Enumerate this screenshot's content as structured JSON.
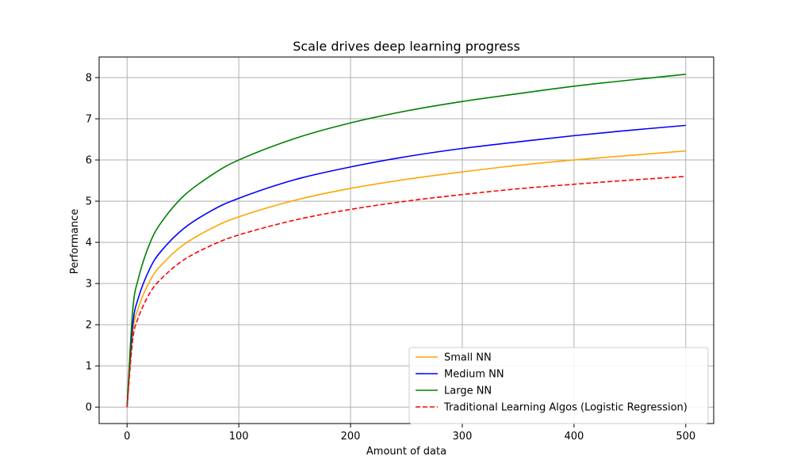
{
  "chart_data": {
    "type": "line",
    "title": "Scale drives deep learning progress",
    "xlabel": "Amount of data",
    "ylabel": "Performance",
    "xlim": [
      -25,
      525
    ],
    "ylim": [
      -0.4,
      8.5
    ],
    "xticks": [
      0,
      100,
      200,
      300,
      400,
      500
    ],
    "yticks": [
      0,
      1,
      2,
      3,
      4,
      5,
      6,
      7,
      8
    ],
    "grid": true,
    "legend_position": "lower-right",
    "x": [
      0,
      5,
      10,
      20,
      30,
      50,
      75,
      100,
      150,
      200,
      250,
      300,
      350,
      400,
      450,
      500
    ],
    "series": [
      {
        "name": "Small NN",
        "color": "#ffa500",
        "dash": "solid",
        "values": [
          0,
          1.8,
          2.4,
          3.04,
          3.43,
          3.93,
          4.33,
          4.62,
          5.02,
          5.31,
          5.53,
          5.71,
          5.87,
          6.0,
          6.11,
          6.22
        ]
      },
      {
        "name": "Medium NN",
        "color": "#0000ff",
        "dash": "solid",
        "values": [
          0,
          1.97,
          2.64,
          3.34,
          3.77,
          4.32,
          4.76,
          5.07,
          5.52,
          5.83,
          6.08,
          6.28,
          6.44,
          6.59,
          6.72,
          6.84
        ]
      },
      {
        "name": "Large NN",
        "color": "#008000",
        "dash": "solid",
        "values": [
          0,
          2.33,
          3.11,
          3.95,
          4.46,
          5.11,
          5.62,
          6.0,
          6.52,
          6.9,
          7.19,
          7.42,
          7.61,
          7.79,
          7.94,
          8.08
        ]
      },
      {
        "name": "Traditional Learning Algos (Logistic Regression)",
        "color": "#ff0000",
        "dash": "dashed",
        "values": [
          0,
          1.62,
          2.17,
          2.75,
          3.1,
          3.56,
          3.92,
          4.18,
          4.54,
          4.8,
          5.0,
          5.16,
          5.3,
          5.41,
          5.51,
          5.6
        ]
      }
    ]
  }
}
